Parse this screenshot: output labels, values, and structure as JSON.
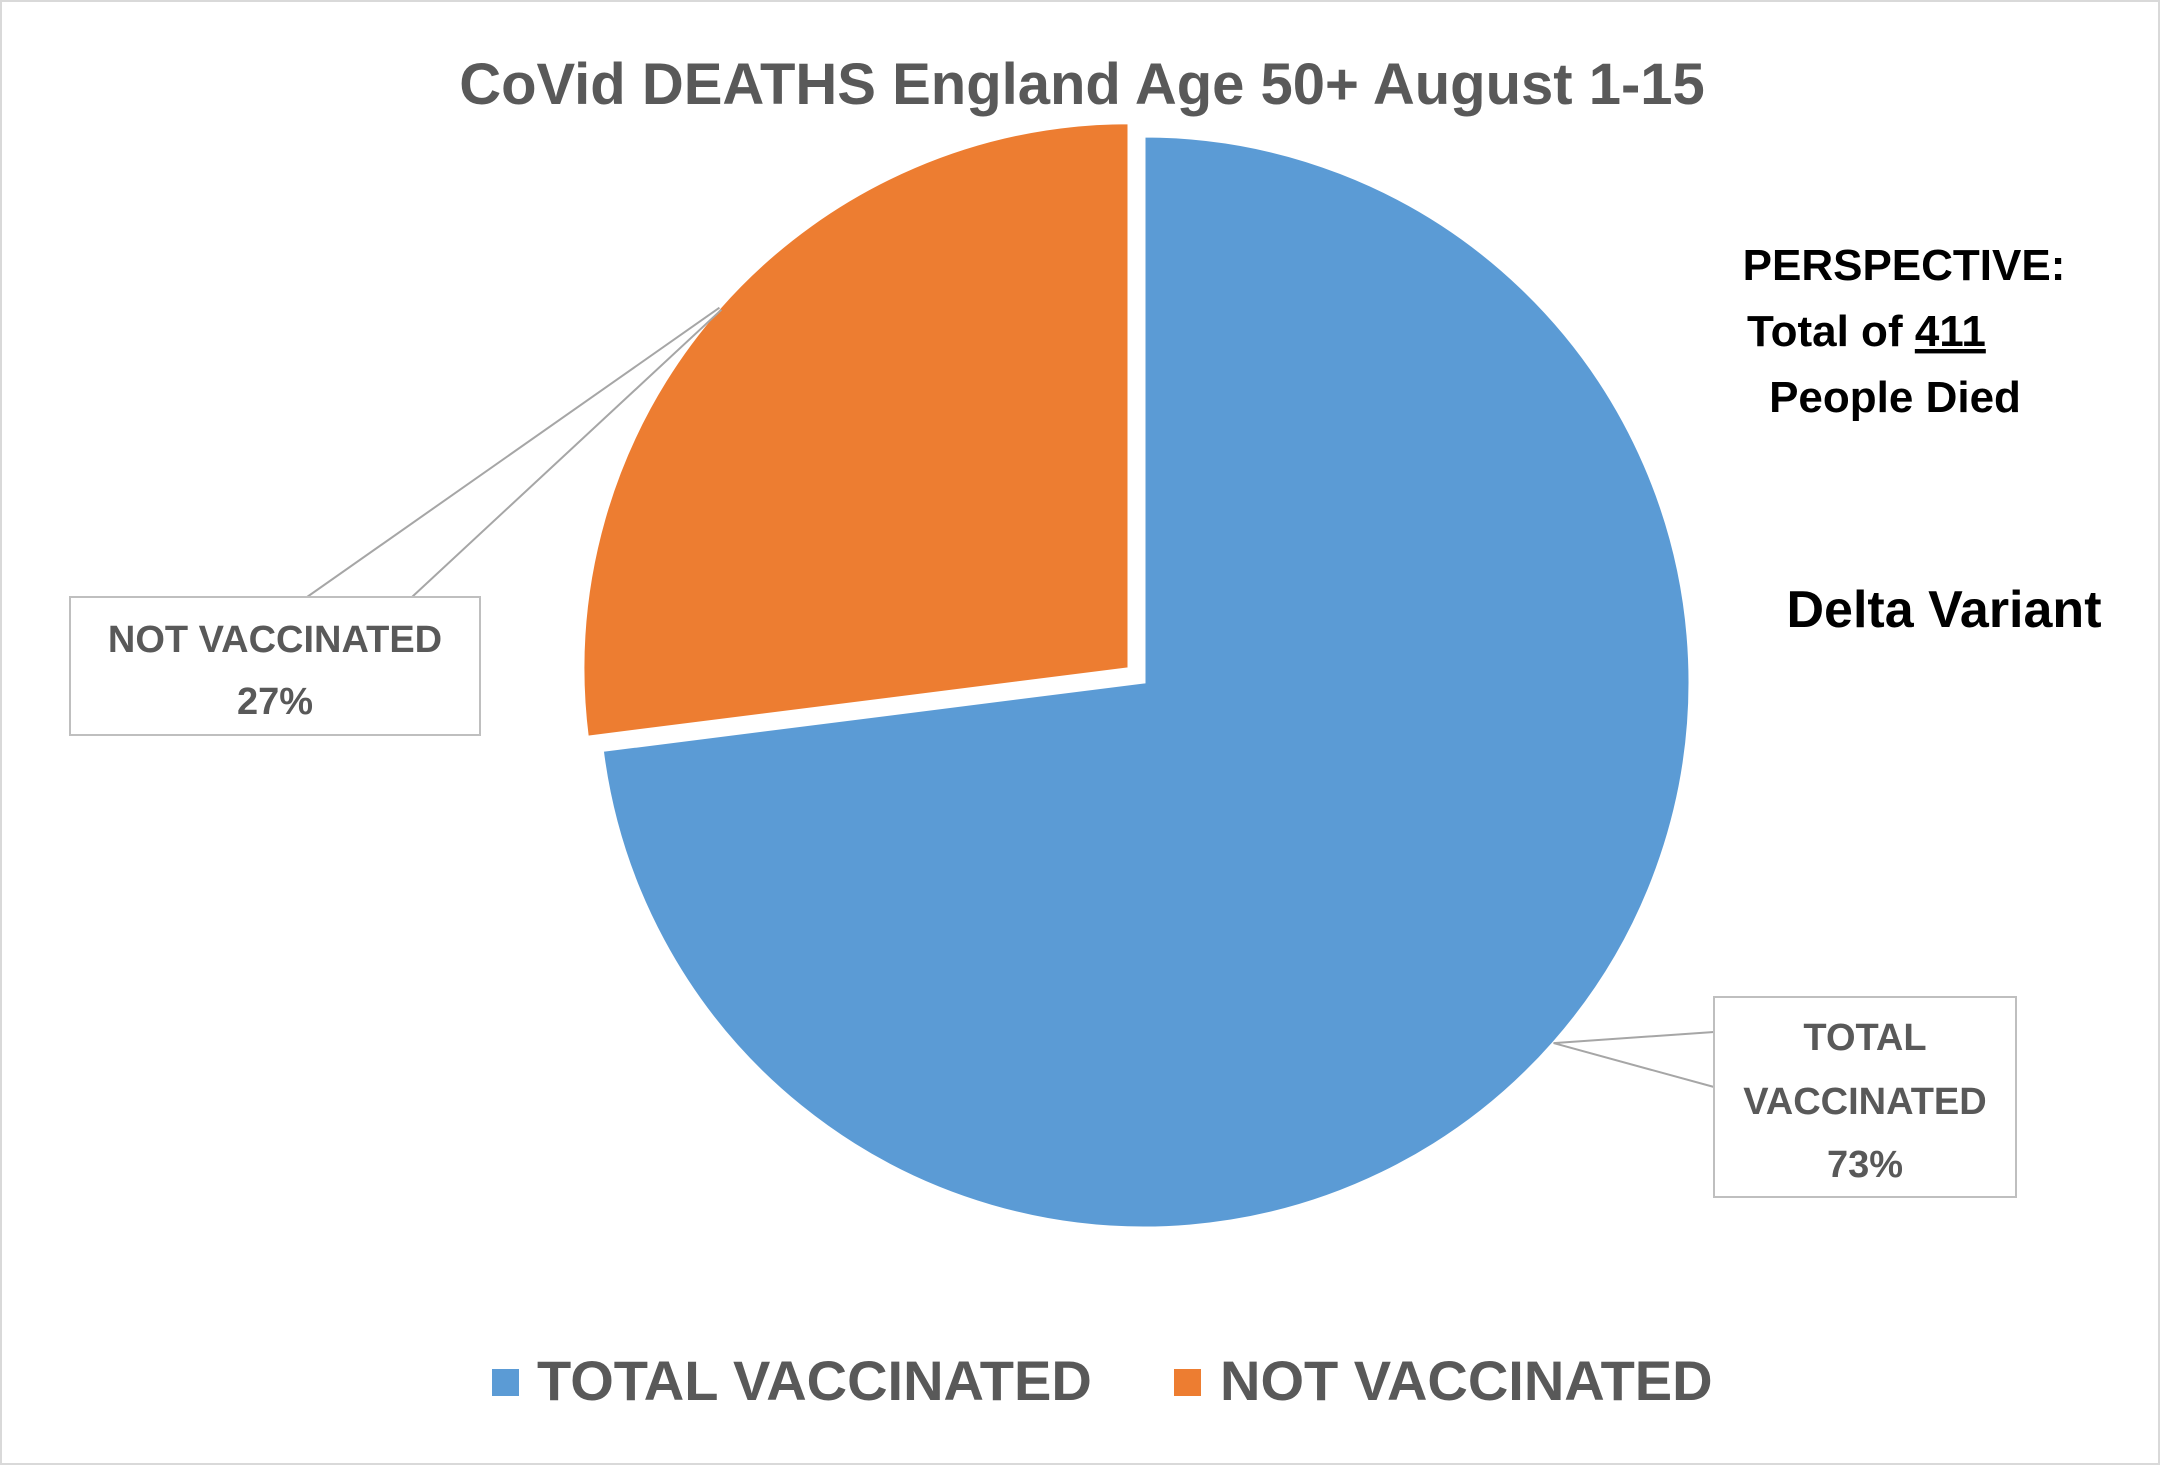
{
  "chart_data": {
    "type": "pie",
    "title": "CoVid DEATHS England  Age 50+  August 1-15",
    "slices": [
      {
        "name": "TOTAL VACCINATED",
        "value": 73,
        "label_lines": [
          "TOTAL",
          "VACCINATED",
          "73%"
        ],
        "color": "#5B9BD5"
      },
      {
        "name": "NOT VACCINATED",
        "value": 27,
        "label_lines": [
          "NOT VACCINATED",
          "27%"
        ],
        "color": "#ED7D31"
      }
    ],
    "legend_position": "bottom",
    "annotations": {
      "perspective_line1": "PERSPECTIVE:",
      "perspective_line2_prefix": "Total of ",
      "perspective_total": "411",
      "perspective_line3": "People Died",
      "variant": "Delta Variant"
    }
  }
}
